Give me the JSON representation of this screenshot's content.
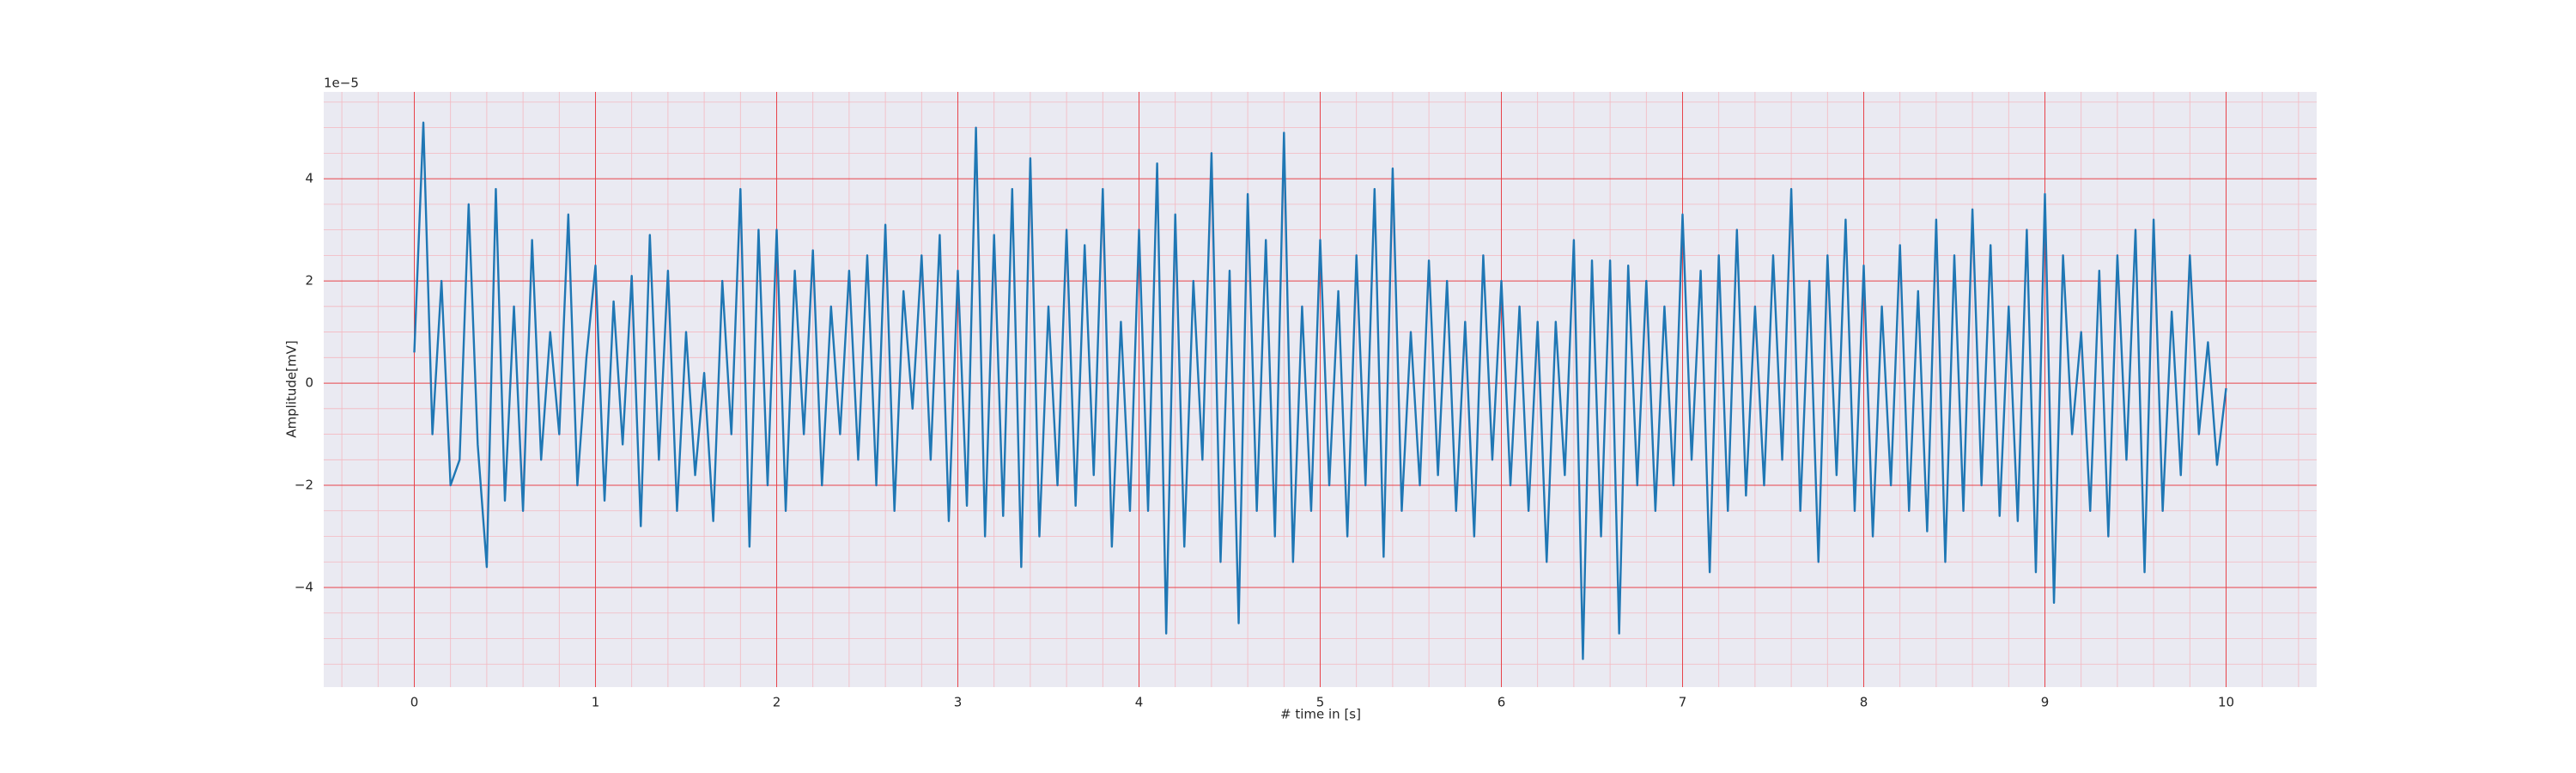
{
  "chart_data": {
    "type": "line",
    "xlabel": "# time in [s]",
    "ylabel": "Amplitude[mV]",
    "offset_text": "1e−5",
    "color": "#1f77b4",
    "grid": true,
    "xlim": [
      -0.5,
      10.5
    ],
    "ylim": [
      -5.95,
      5.7
    ],
    "xticks": [
      0,
      1,
      2,
      3,
      4,
      5,
      6,
      7,
      8,
      9,
      10
    ],
    "yticks": [
      {
        "value": -4,
        "label": "−4"
      },
      {
        "value": -2,
        "label": "−2"
      },
      0,
      2,
      4
    ],
    "xminorticks": [
      -0.4,
      -0.2,
      0.2,
      0.4,
      0.6,
      0.8,
      1.2,
      1.4,
      1.6,
      1.8,
      2.2,
      2.4,
      2.6,
      2.8,
      3.2,
      3.4,
      3.6,
      3.8,
      4.2,
      4.4,
      4.6,
      4.8,
      5.2,
      5.4,
      5.6,
      5.8,
      6.2,
      6.4,
      6.6,
      6.8,
      7.2,
      7.4,
      7.6,
      7.8,
      8.2,
      8.4,
      8.6,
      8.8,
      9.2,
      9.4,
      9.6,
      9.8,
      10.2,
      10.4
    ],
    "yminorticks": [
      -5.5,
      -5,
      -4.5,
      -3.5,
      -3,
      -2.5,
      -1.5,
      -1,
      -0.5,
      0.5,
      1,
      1.5,
      2.5,
      3,
      3.5,
      4.5,
      5,
      5.5
    ],
    "x": [
      0,
      0.05,
      0.1,
      0.15,
      0.2,
      0.25,
      0.3,
      0.35,
      0.4,
      0.45,
      0.5,
      0.55,
      0.6,
      0.65,
      0.7,
      0.75,
      0.8,
      0.85,
      0.9,
      0.95,
      1,
      1.05,
      1.1,
      1.15,
      1.2,
      1.25,
      1.3,
      1.35,
      1.4,
      1.45,
      1.5,
      1.55,
      1.6,
      1.65,
      1.7,
      1.75,
      1.8,
      1.85,
      1.9,
      1.95,
      2,
      2.05,
      2.1,
      2.15,
      2.2,
      2.25,
      2.3,
      2.35,
      2.4,
      2.45,
      2.5,
      2.55,
      2.6,
      2.65,
      2.7,
      2.75,
      2.8,
      2.85,
      2.9,
      2.95,
      3,
      3.05,
      3.1,
      3.15,
      3.2,
      3.25,
      3.3,
      3.35,
      3.4,
      3.45,
      3.5,
      3.55,
      3.6,
      3.65,
      3.7,
      3.75,
      3.8,
      3.85,
      3.9,
      3.95,
      4,
      4.05,
      4.1,
      4.15,
      4.2,
      4.25,
      4.3,
      4.35,
      4.4,
      4.45,
      4.5,
      4.55,
      4.6,
      4.65,
      4.7,
      4.75,
      4.8,
      4.85,
      4.9,
      4.95,
      5,
      5.05,
      5.1,
      5.15,
      5.2,
      5.25,
      5.3,
      5.35,
      5.4,
      5.45,
      5.5,
      5.55,
      5.6,
      5.65,
      5.7,
      5.75,
      5.8,
      5.85,
      5.9,
      5.95,
      6,
      6.05,
      6.1,
      6.15,
      6.2,
      6.25,
      6.3,
      6.35,
      6.4,
      6.45,
      6.5,
      6.55,
      6.6,
      6.65,
      6.7,
      6.75,
      6.8,
      6.85,
      6.9,
      6.95,
      7,
      7.05,
      7.1,
      7.15,
      7.2,
      7.25,
      7.3,
      7.35,
      7.4,
      7.45,
      7.5,
      7.55,
      7.6,
      7.65,
      7.7,
      7.75,
      7.8,
      7.85,
      7.9,
      7.95,
      8,
      8.05,
      8.1,
      8.15,
      8.2,
      8.25,
      8.3,
      8.35,
      8.4,
      8.45,
      8.5,
      8.55,
      8.6,
      8.65,
      8.7,
      8.75,
      8.8,
      8.85,
      8.9,
      8.95,
      9,
      9.05,
      9.1,
      9.15,
      9.2,
      9.25,
      9.3,
      9.35,
      9.4,
      9.45,
      9.5,
      9.55,
      9.6,
      9.65,
      9.7,
      9.75,
      9.8,
      9.85,
      9.9,
      9.95,
      10
    ],
    "values": [
      0.6,
      5.1,
      -1.0,
      2.0,
      -2.0,
      -1.5,
      3.5,
      -1.2,
      -3.6,
      3.8,
      -2.3,
      1.5,
      -2.5,
      2.8,
      -1.5,
      1.0,
      -1.0,
      3.3,
      -2.0,
      0.5,
      2.3,
      -2.3,
      1.6,
      -1.2,
      2.1,
      -2.8,
      2.9,
      -1.5,
      2.2,
      -2.5,
      1.0,
      -1.8,
      0.2,
      -2.7,
      2.0,
      -1.0,
      3.8,
      -3.2,
      3.0,
      -2.0,
      3.0,
      -2.5,
      2.2,
      -1.0,
      2.6,
      -2.0,
      1.5,
      -1.0,
      2.2,
      -1.5,
      2.5,
      -2.0,
      3.1,
      -2.5,
      1.8,
      -0.5,
      2.5,
      -1.5,
      2.9,
      -2.7,
      2.2,
      -2.4,
      5.0,
      -3.0,
      2.9,
      -2.6,
      3.8,
      -3.6,
      4.4,
      -3.0,
      1.5,
      -2.0,
      3.0,
      -2.4,
      2.7,
      -1.8,
      3.8,
      -3.2,
      1.2,
      -2.5,
      3.0,
      -2.5,
      4.3,
      -4.9,
      3.3,
      -3.2,
      2.0,
      -1.5,
      4.5,
      -3.5,
      2.2,
      -4.7,
      3.7,
      -2.5,
      2.8,
      -3.0,
      4.9,
      -3.5,
      1.5,
      -2.5,
      2.8,
      -2.0,
      1.8,
      -3.0,
      2.5,
      -2.0,
      3.8,
      -3.4,
      4.2,
      -2.5,
      1.0,
      -2.0,
      2.4,
      -1.8,
      2.0,
      -2.5,
      1.2,
      -3.0,
      2.5,
      -1.5,
      2.0,
      -2.0,
      1.5,
      -2.5,
      1.2,
      -3.5,
      1.2,
      -1.8,
      2.8,
      -5.4,
      2.4,
      -3.0,
      2.4,
      -4.9,
      2.3,
      -2.0,
      2.0,
      -2.5,
      1.5,
      -2.0,
      3.3,
      -1.5,
      2.2,
      -3.7,
      2.5,
      -2.5,
      3.0,
      -2.2,
      1.5,
      -2.0,
      2.5,
      -1.5,
      3.8,
      -2.5,
      2.0,
      -3.5,
      2.5,
      -1.8,
      3.2,
      -2.5,
      2.3,
      -3.0,
      1.5,
      -2.0,
      2.7,
      -2.5,
      1.8,
      -2.9,
      3.2,
      -3.5,
      2.5,
      -2.5,
      3.4,
      -2.0,
      2.7,
      -2.6,
      1.5,
      -2.7,
      3.0,
      -3.7,
      3.7,
      -4.3,
      2.5,
      -1.0,
      1.0,
      -2.5,
      2.2,
      -3.0,
      2.5,
      -1.5,
      3.0,
      -3.7,
      3.2,
      -2.5,
      1.4,
      -1.8,
      2.5,
      -1.0,
      0.8,
      -1.6,
      -0.1
    ]
  }
}
